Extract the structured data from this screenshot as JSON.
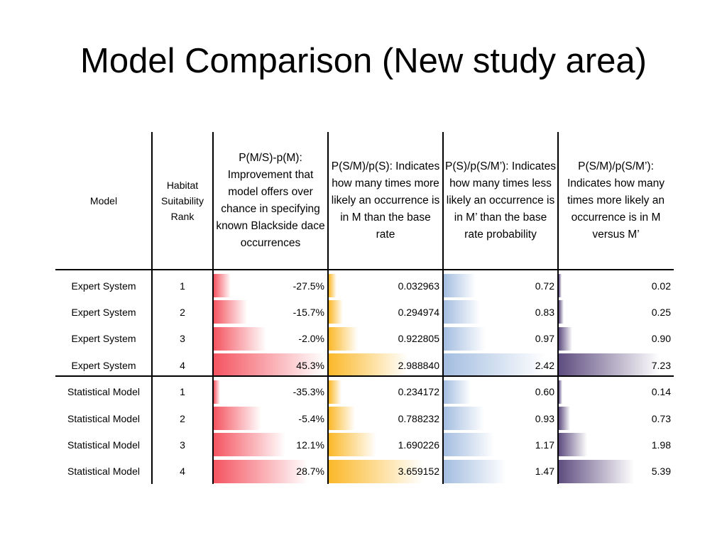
{
  "slide": {
    "title": "Model Comparison (New study area)"
  },
  "table": {
    "headers": {
      "model": "Model",
      "rank": "Habitat Suitability Rank",
      "pm": "P(M/S)-p(M): Improvement that model offers over chance in specifying known Blackside dace occurrences",
      "psm": "P(S/M)/p(S): Indicates how many times more likely an occurrence is in M than the base rate",
      "ps": "P(S)/p(S/M’): Indicates how many times less likely an occurrence is in M’ than the base rate probability",
      "ratio": "P(S/M)/p(S/M’): Indicates how many times more likely an occurrence is in M versus M’"
    },
    "bar_colors": {
      "pm": "#f45460",
      "psm": "#fbb829",
      "ps": "#a3bde0",
      "ratio": "#5e4d80"
    },
    "rows": [
      {
        "model": "Expert System",
        "rank": "1",
        "pm": "-27.5%",
        "pm_value": -27.5,
        "psm": "0.032963",
        "psm_value": 0.032963,
        "ps": "0.72",
        "ps_value": 0.72,
        "ratio": "0.02",
        "ratio_value": 0.02
      },
      {
        "model": "Expert System",
        "rank": "2",
        "pm": "-15.7%",
        "pm_value": -15.7,
        "psm": "0.294974",
        "psm_value": 0.294974,
        "ps": "0.83",
        "ps_value": 0.83,
        "ratio": "0.25",
        "ratio_value": 0.25
      },
      {
        "model": "Expert System",
        "rank": "3",
        "pm": "-2.0%",
        "pm_value": -2.0,
        "psm": "0.922805",
        "psm_value": 0.922805,
        "ps": "0.97",
        "ps_value": 0.97,
        "ratio": "0.90",
        "ratio_value": 0.9
      },
      {
        "model": "Expert System",
        "rank": "4",
        "pm": "45.3%",
        "pm_value": 45.3,
        "psm": "2.988840",
        "psm_value": 2.98884,
        "ps": "2.42",
        "ps_value": 2.42,
        "ratio": "7.23",
        "ratio_value": 7.23
      },
      {
        "model": "Statistical Model",
        "rank": "1",
        "pm": "-35.3%",
        "pm_value": -35.3,
        "psm": "0.234172",
        "psm_value": 0.234172,
        "ps": "0.60",
        "ps_value": 0.6,
        "ratio": "0.14",
        "ratio_value": 0.14
      },
      {
        "model": "Statistical Model",
        "rank": "2",
        "pm": "-5.4%",
        "pm_value": -5.4,
        "psm": "0.788232",
        "psm_value": 0.788232,
        "ps": "0.93",
        "ps_value": 0.93,
        "ratio": "0.73",
        "ratio_value": 0.73
      },
      {
        "model": "Statistical Model",
        "rank": "3",
        "pm": "12.1%",
        "pm_value": 12.1,
        "psm": "1.690226",
        "psm_value": 1.690226,
        "ps": "1.17",
        "ps_value": 1.17,
        "ratio": "1.98",
        "ratio_value": 1.98
      },
      {
        "model": "Statistical Model",
        "rank": "4",
        "pm": "28.7%",
        "pm_value": 28.7,
        "psm": "3.659152",
        "psm_value": 3.659152,
        "ps": "1.47",
        "ps_value": 1.47,
        "ratio": "5.39",
        "ratio_value": 5.39
      }
    ]
  }
}
